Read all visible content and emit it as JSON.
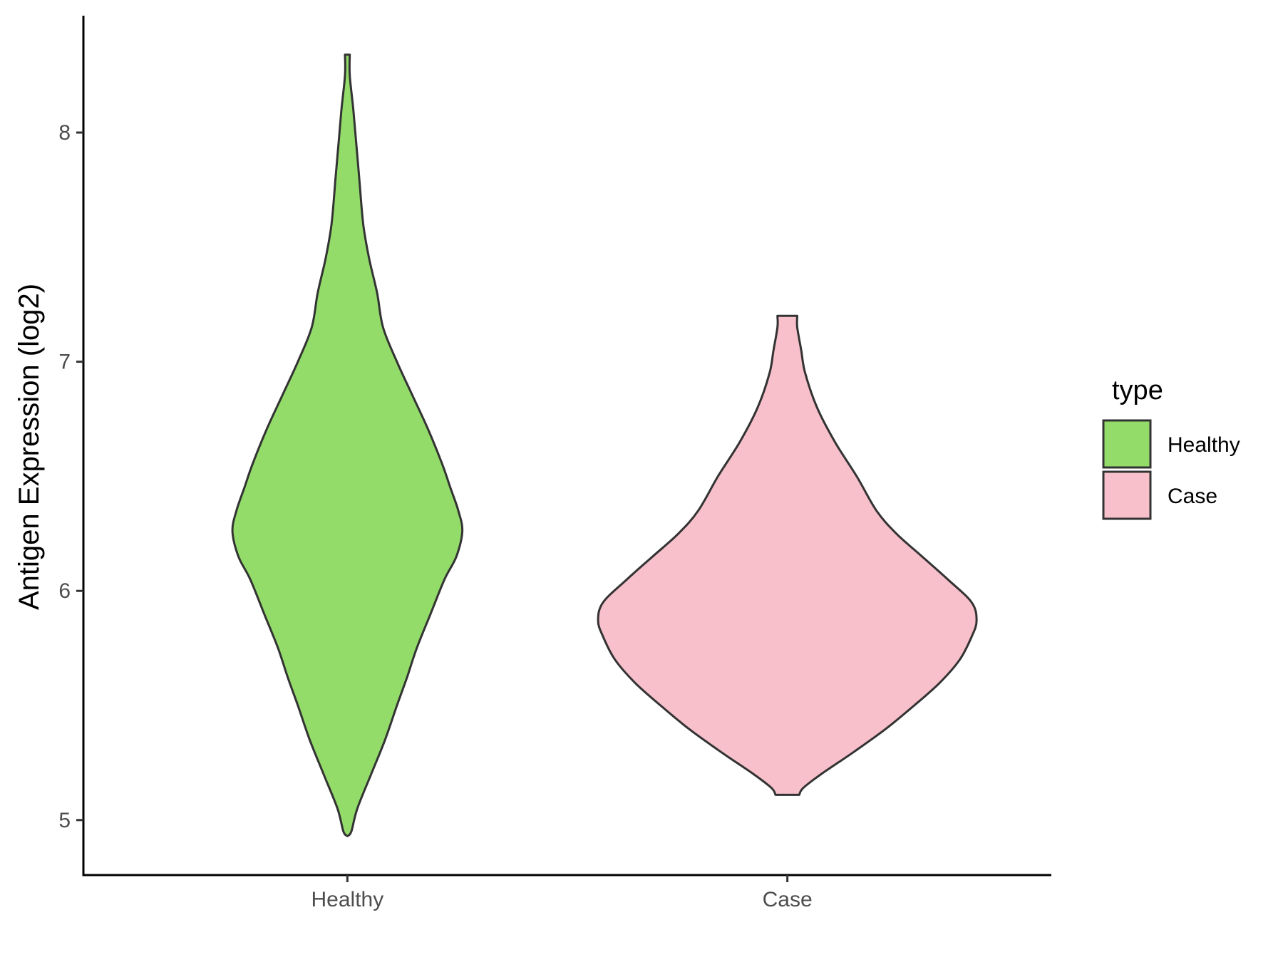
{
  "chart_data": {
    "type": "violin",
    "title": "",
    "xlabel": "",
    "ylabel": "Antigen Expression (log2)",
    "ylim": [
      4.76,
      8.51
    ],
    "y_ticks": [
      5,
      6,
      7,
      8
    ],
    "categories": [
      "Healthy",
      "Case"
    ],
    "grid": false,
    "legend": {
      "title": "type",
      "position": "right",
      "entries": [
        {
          "label": "Healthy",
          "color": "#93dc6a"
        },
        {
          "label": "Case",
          "color": "#f7c0cb"
        }
      ]
    },
    "outline_color": "#333333",
    "series": [
      {
        "name": "Healthy",
        "color": "#93dc6a",
        "y_min": 4.93,
        "y_max": 8.34,
        "profile": [
          [
            4.93,
            0.0
          ],
          [
            4.95,
            0.02
          ],
          [
            5.05,
            0.05
          ],
          [
            5.2,
            0.12
          ],
          [
            5.35,
            0.19
          ],
          [
            5.5,
            0.25
          ],
          [
            5.62,
            0.3
          ],
          [
            5.75,
            0.35
          ],
          [
            5.9,
            0.42
          ],
          [
            6.05,
            0.49
          ],
          [
            6.15,
            0.55
          ],
          [
            6.26,
            0.58
          ],
          [
            6.35,
            0.56
          ],
          [
            6.45,
            0.52
          ],
          [
            6.55,
            0.48
          ],
          [
            6.7,
            0.41
          ],
          [
            6.85,
            0.33
          ],
          [
            7.0,
            0.25
          ],
          [
            7.15,
            0.18
          ],
          [
            7.3,
            0.15
          ],
          [
            7.45,
            0.11
          ],
          [
            7.6,
            0.08
          ],
          [
            7.8,
            0.06
          ],
          [
            7.95,
            0.045
          ],
          [
            8.1,
            0.03
          ],
          [
            8.25,
            0.012
          ],
          [
            8.34,
            0.012
          ]
        ]
      },
      {
        "name": "Case",
        "color": "#f7c0cb",
        "y_min": 5.11,
        "y_max": 7.2,
        "profile": [
          [
            5.11,
            0.06
          ],
          [
            5.14,
            0.08
          ],
          [
            5.2,
            0.17
          ],
          [
            5.3,
            0.34
          ],
          [
            5.4,
            0.5
          ],
          [
            5.5,
            0.64
          ],
          [
            5.6,
            0.77
          ],
          [
            5.7,
            0.87
          ],
          [
            5.8,
            0.93
          ],
          [
            5.87,
            0.955
          ],
          [
            5.95,
            0.93
          ],
          [
            6.05,
            0.81
          ],
          [
            6.15,
            0.68
          ],
          [
            6.25,
            0.55
          ],
          [
            6.35,
            0.45
          ],
          [
            6.5,
            0.35
          ],
          [
            6.65,
            0.24
          ],
          [
            6.8,
            0.15
          ],
          [
            6.95,
            0.09
          ],
          [
            7.05,
            0.07
          ],
          [
            7.15,
            0.05
          ],
          [
            7.2,
            0.05
          ]
        ]
      }
    ]
  }
}
